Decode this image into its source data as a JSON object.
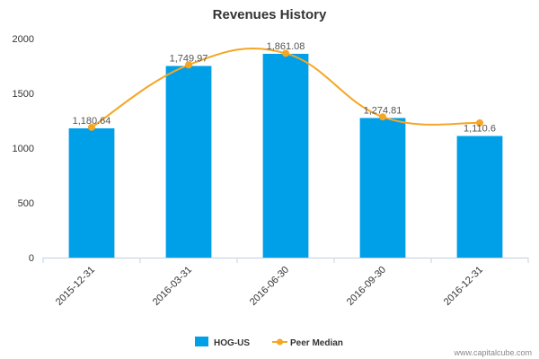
{
  "chart_data": {
    "type": "bar",
    "title": "Revenues History",
    "categories": [
      "2015-12-31",
      "2016-03-31",
      "2016-06-30",
      "2016-09-30",
      "2016-12-31"
    ],
    "series": [
      {
        "name": "HOG-US",
        "type": "bar",
        "color": "#00A0E9",
        "values": [
          1180.64,
          1749.97,
          1861.08,
          1274.81,
          1110.6
        ],
        "labels": [
          "1,180.64",
          "1,749.97",
          "1,861.08",
          "1,274.81",
          "1,110.6"
        ]
      },
      {
        "name": "Peer Median",
        "type": "line",
        "color": "#F5A623",
        "values": [
          1190,
          1760,
          1865,
          1285,
          1230
        ]
      }
    ],
    "ylim": [
      0,
      2000
    ],
    "yticks": [
      0,
      500,
      1000,
      1500,
      2000
    ],
    "grid": false,
    "legend": "bottom-center",
    "xlabel": "",
    "ylabel": ""
  },
  "credit": "www.capitalcube.com"
}
